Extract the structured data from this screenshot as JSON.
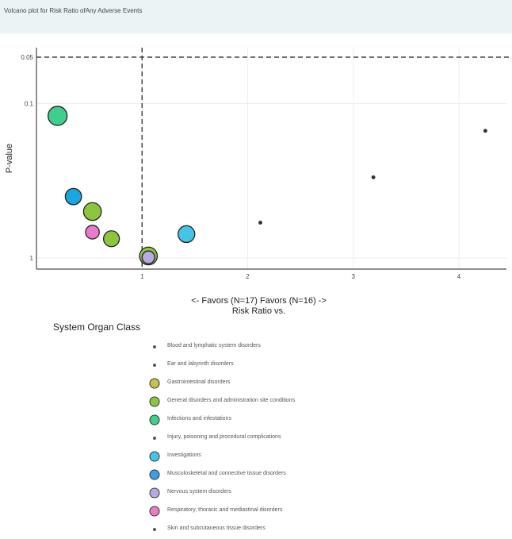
{
  "page": {
    "title": "Volcano plot for Risk Ratio ofAny Adverse Events"
  },
  "legend": {
    "title": "System Organ Class",
    "items": [
      {
        "label": "Blood and lymphatic system disorders",
        "color": "#555555",
        "size": "small"
      },
      {
        "label": "Ear and labyrinth disorders",
        "color": "#555555",
        "size": "small"
      },
      {
        "label": "Gastrointestinal disorders",
        "color": "#c9c24a",
        "size": "large"
      },
      {
        "label": "General disorders and administration site conditions",
        "color": "#8cc63f",
        "size": "large"
      },
      {
        "label": "Infections and infestations",
        "color": "#3ecf8e",
        "size": "large"
      },
      {
        "label": "Injury, poisoning and procedural complications",
        "color": "#555555",
        "size": "small"
      },
      {
        "label": "Investigations",
        "color": "#45c4e8",
        "size": "large"
      },
      {
        "label": "Musculoskeletal and connective tissue disorders",
        "color": "#3aa0e6",
        "size": "large"
      },
      {
        "label": "Nervous system disorders",
        "color": "#b9a7e6",
        "size": "large"
      },
      {
        "label": "Respiratory, thoracic and mediastinal disorders",
        "color": "#e87ccb",
        "size": "large"
      },
      {
        "label": "Skin and subcutaneous tissue disorders",
        "color": "#555555",
        "size": "small"
      }
    ]
  },
  "chart_data": {
    "type": "scatter",
    "title": "Volcano plot for Risk Ratio ofAny Adverse Events",
    "xlabel_line1": "<- Favors  (N=17) Favors  (N=16) ->",
    "xlabel_line2": "Risk Ratio  vs.",
    "ylabel": "P-value",
    "x_ticks": [
      "1",
      "2",
      "3",
      "4"
    ],
    "x_tick_values": [
      1,
      2,
      3,
      4
    ],
    "y_ticks": [
      "0.05",
      "0.1",
      "1"
    ],
    "y_tick_values": [
      0.05,
      0.1,
      1
    ],
    "y_scale": "log, reversed",
    "xlim": [
      0.0,
      4.45
    ],
    "ylim": [
      0.05,
      1.18
    ],
    "reference_lines": {
      "x": 1,
      "y": 0.05
    },
    "grid": true,
    "points": [
      {
        "series": "Infections and infestations",
        "x": 0.2,
        "y": 0.12,
        "size": 1.0,
        "color": "#3ecf8e"
      },
      {
        "series": "Musculoskeletal and connective tissue disorders",
        "x": 0.35,
        "y": 0.4,
        "size": 0.78,
        "color": "#1aa7e0"
      },
      {
        "series": "General disorders and administration site conditions",
        "x": 0.53,
        "y": 0.5,
        "size": 0.9,
        "color": "#8cc63f"
      },
      {
        "series": "Respiratory, thoracic and mediastinal disorders",
        "x": 0.53,
        "y": 0.68,
        "size": 0.58,
        "color": "#e87ccb"
      },
      {
        "series": "General disorders and administration site conditions",
        "x": 0.71,
        "y": 0.75,
        "size": 0.75,
        "color": "#8cc63f"
      },
      {
        "series": "General disorders and administration site conditions",
        "x": 1.06,
        "y": 0.97,
        "size": 0.9,
        "color": "#8cc63f"
      },
      {
        "series": "Nervous system disorders",
        "x": 1.06,
        "y": 0.99,
        "size": 0.5,
        "color": "#b9a7e6"
      },
      {
        "series": "Investigations",
        "x": 1.42,
        "y": 0.7,
        "size": 0.82,
        "color": "#45c4e8"
      },
      {
        "series": "Injury, poisoning and procedural complications",
        "x": 2.12,
        "y": 0.59,
        "size": 0.15,
        "color": "#333333"
      },
      {
        "series": "Skin and subcutaneous tissue disorders",
        "x": 3.19,
        "y": 0.3,
        "size": 0.15,
        "color": "#333333"
      },
      {
        "series": "Ear and labyrinth disorders",
        "x": 4.25,
        "y": 0.15,
        "size": 0.15,
        "color": "#333333"
      }
    ]
  }
}
